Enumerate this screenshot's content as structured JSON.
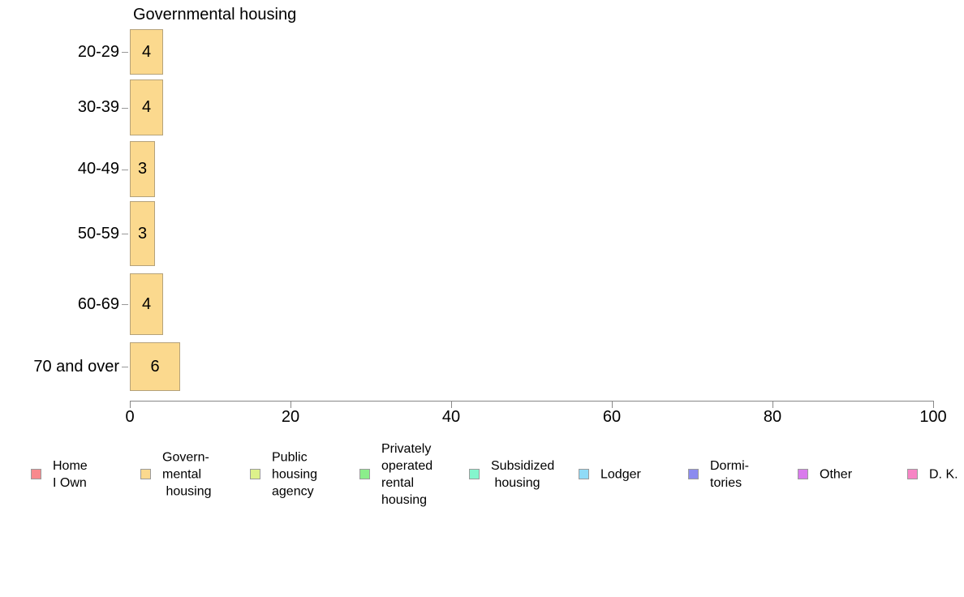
{
  "chart_data": {
    "type": "bar",
    "orientation": "horizontal",
    "title": "Governmental housing",
    "categories": [
      "20-29",
      "30-39",
      "40-49",
      "50-59",
      "60-69",
      "70 and over"
    ],
    "values": [
      4,
      4,
      3,
      3,
      4,
      6
    ],
    "bar_color": "#FBD98E",
    "bar_border_color": "#b5a27a",
    "xlabel": "",
    "ylabel": "",
    "xlim": [
      0,
      100
    ],
    "x_ticks": [
      "0",
      "20",
      "40",
      "60",
      "80",
      "100"
    ],
    "grid": false,
    "legend_position": "bottom",
    "legend": [
      {
        "label": "Home\nI Own",
        "color": "#F8898D"
      },
      {
        "label": "Govern-\nmental\n housing",
        "color": "#FBD98E"
      },
      {
        "label": "Public\nhousing\nagency",
        "color": "#DDF18B"
      },
      {
        "label": "Privately\noperated\nrental\nhousing",
        "color": "#8BEE8B"
      },
      {
        "label": "Subsidized\n housing",
        "color": "#84F6CD"
      },
      {
        "label": "Lodger",
        "color": "#90DBF7"
      },
      {
        "label": "Dormi-\ntories",
        "color": "#8B8BEF"
      },
      {
        "label": "Other",
        "color": "#D97BEC"
      },
      {
        "label": "D. K.",
        "color": "#F785C5"
      }
    ]
  }
}
